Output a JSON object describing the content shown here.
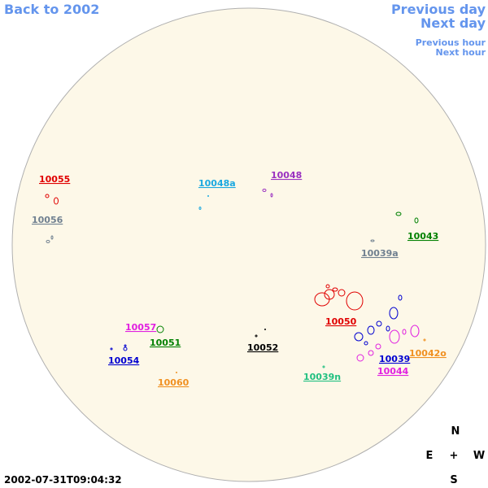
{
  "nav": {
    "back": "Back to 2002",
    "previous_day": "Previous day",
    "next_day": "Next day",
    "previous_hour": "Previous hour",
    "next_hour": "Next hour"
  },
  "regions": [
    {
      "label": "10055",
      "color": "#e00000"
    },
    {
      "label": "10048a",
      "color": "#1aa8e0"
    },
    {
      "label": "10048",
      "color": "#9a30c0"
    },
    {
      "label": "10056",
      "color": "#708090"
    },
    {
      "label": "10043",
      "color": "#008000"
    },
    {
      "label": "10039a",
      "color": "#708090"
    },
    {
      "label": "10050",
      "color": "#e00000"
    },
    {
      "label": "10057",
      "color": "#e020e0"
    },
    {
      "label": "10051",
      "color": "#008000"
    },
    {
      "label": "10052",
      "color": "#000000"
    },
    {
      "label": "10054",
      "color": "#0000d0"
    },
    {
      "label": "10039",
      "color": "#0000d0"
    },
    {
      "label": "10042o",
      "color": "#f09020"
    },
    {
      "label": "10044",
      "color": "#e020e0"
    },
    {
      "label": "10060",
      "color": "#f09020"
    },
    {
      "label": "10039n",
      "color": "#20c080"
    }
  ],
  "timestamp": "2002-07-31T09:04:32",
  "compass": {
    "north": "N",
    "east": "E",
    "center": "+",
    "west": "W",
    "south": "S"
  }
}
